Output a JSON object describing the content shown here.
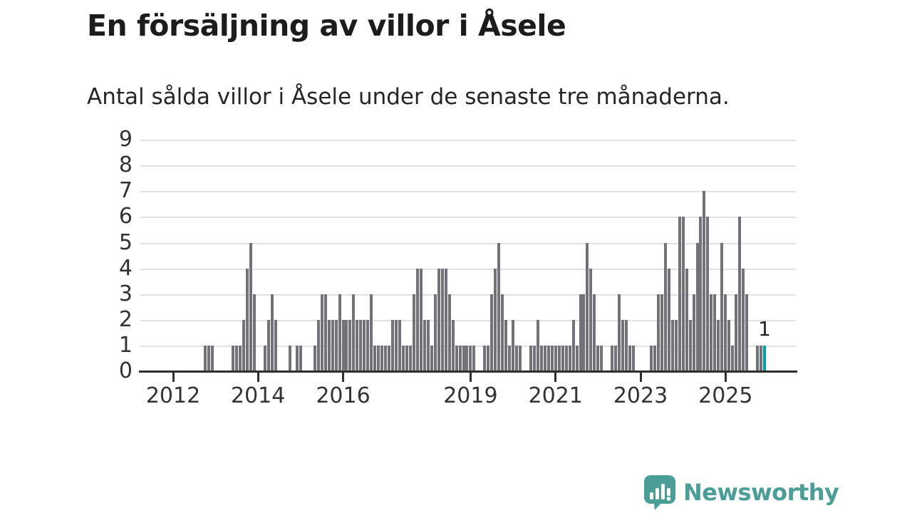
{
  "header": {
    "title": "En försäljning av villor i Åsele",
    "subtitle": "Antal sålda villor i Åsele under de senaste tre månaderna."
  },
  "annotation": {
    "last_value_label": "1"
  },
  "y_axis": {
    "tick_labels": [
      "0",
      "1",
      "2",
      "3",
      "4",
      "5",
      "6",
      "7",
      "8",
      "9"
    ]
  },
  "x_axis": {
    "tick_years": [
      "2012",
      "2014",
      "2016",
      "2019",
      "2021",
      "2023",
      "2025"
    ]
  },
  "colors": {
    "bar": "#72727A",
    "highlight_bar": "#00A2A0",
    "gridline": "#e2e2e2",
    "axis": "#2e2e2e",
    "text": "#333333",
    "logo_teal": "#4A9E97"
  },
  "logo": {
    "text": "Newsworthy",
    "icon": "speech-bubble-bar-chart-icon"
  },
  "chart_data": {
    "type": "bar",
    "title": "En försäljning av villor i Åsele",
    "subtitle": "Antal sålda villor i Åsele under de senaste tre månaderna.",
    "unit": "sålda villor per 3 månader",
    "start_month": "2011-05",
    "end_month": "2025-12",
    "ylim": [
      0,
      9
    ],
    "grid": true,
    "x_tick_years": [
      2012,
      2014,
      2016,
      2019,
      2021,
      2023,
      2025
    ],
    "x_tick_month_indices": [
      8,
      32,
      56,
      92,
      116,
      140,
      164
    ],
    "highlight_last_bar": true,
    "last_bar_label": "1",
    "values": [
      0,
      0,
      0,
      0,
      0,
      0,
      0,
      0,
      0,
      0,
      0,
      0,
      0,
      0,
      0,
      0,
      0,
      1,
      1,
      1,
      0,
      0,
      0,
      0,
      0,
      1,
      1,
      1,
      2,
      4,
      5,
      3,
      0,
      0,
      1,
      2,
      3,
      2,
      0,
      0,
      0,
      1,
      0,
      1,
      1,
      0,
      0,
      0,
      1,
      2,
      3,
      3,
      2,
      2,
      2,
      3,
      2,
      2,
      2,
      3,
      2,
      2,
      2,
      2,
      3,
      1,
      1,
      1,
      1,
      1,
      2,
      2,
      2,
      1,
      1,
      1,
      3,
      4,
      4,
      2,
      2,
      1,
      3,
      4,
      4,
      4,
      3,
      2,
      1,
      1,
      1,
      1,
      1,
      1,
      0,
      0,
      1,
      1,
      3,
      4,
      5,
      3,
      2,
      1,
      2,
      1,
      1,
      0,
      0,
      1,
      1,
      2,
      1,
      1,
      1,
      1,
      1,
      1,
      1,
      1,
      1,
      2,
      1,
      3,
      3,
      5,
      4,
      3,
      1,
      1,
      0,
      0,
      1,
      1,
      3,
      2,
      2,
      1,
      1,
      0,
      0,
      0,
      0,
      1,
      1,
      3,
      3,
      5,
      4,
      2,
      2,
      6,
      6,
      4,
      2,
      3,
      5,
      6,
      7,
      6,
      3,
      3,
      2,
      5,
      3,
      2,
      1,
      3,
      6,
      4,
      3,
      0,
      0,
      1,
      1,
      1
    ]
  }
}
